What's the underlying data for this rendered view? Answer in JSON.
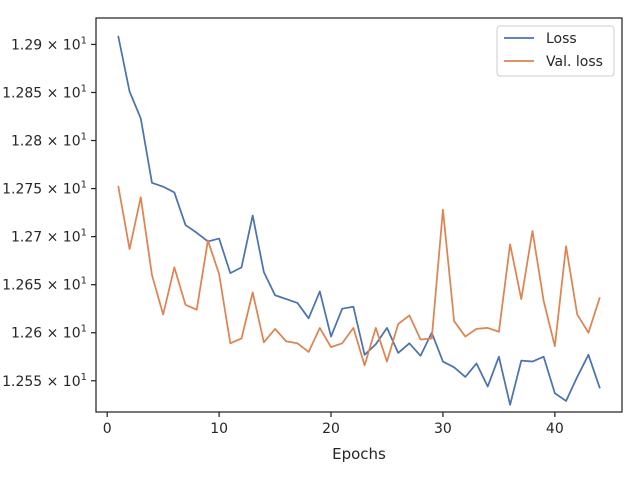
{
  "chart_data": {
    "type": "line",
    "title": "",
    "xlabel": "Epochs",
    "ylabel": "",
    "xlim": [
      -1,
      46
    ],
    "ylim": [
      12.5175,
      12.9275
    ],
    "x_ticks": [
      0,
      10,
      20,
      30,
      40
    ],
    "y_ticks": [
      {
        "value": 12.55,
        "mantissa": "1.255"
      },
      {
        "value": 12.6,
        "mantissa": "1.26"
      },
      {
        "value": 12.65,
        "mantissa": "1.265"
      },
      {
        "value": 12.7,
        "mantissa": "1.27"
      },
      {
        "value": 12.75,
        "mantissa": "1.275"
      },
      {
        "value": 12.8,
        "mantissa": "1.28"
      },
      {
        "value": 12.85,
        "mantissa": "1.285"
      },
      {
        "value": 12.9,
        "mantissa": "1.29"
      }
    ],
    "y_tick_times": "× 10",
    "y_tick_exponent": "1",
    "grid": false,
    "legend_position": "top-right",
    "x": [
      1,
      2,
      3,
      4,
      5,
      6,
      7,
      8,
      9,
      10,
      11,
      12,
      13,
      14,
      15,
      16,
      17,
      18,
      19,
      20,
      21,
      22,
      23,
      24,
      25,
      26,
      27,
      28,
      29,
      30,
      31,
      32,
      33,
      34,
      35,
      36,
      37,
      38,
      39,
      40,
      41,
      42,
      43,
      44
    ],
    "series": [
      {
        "name": "Loss",
        "color": "#4c72b0",
        "values": [
          12.908,
          12.851,
          12.823,
          12.756,
          12.752,
          12.746,
          12.712,
          12.704,
          12.695,
          12.698,
          12.662,
          12.668,
          12.722,
          12.663,
          12.639,
          12.635,
          12.631,
          12.615,
          12.643,
          12.596,
          12.625,
          12.627,
          12.577,
          12.588,
          12.605,
          12.579,
          12.589,
          12.576,
          12.6,
          12.57,
          12.564,
          12.554,
          12.568,
          12.544,
          12.575,
          12.525,
          12.571,
          12.57,
          12.575,
          12.537,
          12.529,
          12.554,
          12.577,
          12.543
        ]
      },
      {
        "name": "Val. loss",
        "color": "#dd8452",
        "values": [
          12.752,
          12.687,
          12.741,
          12.66,
          12.619,
          12.668,
          12.629,
          12.624,
          12.696,
          12.661,
          12.589,
          12.594,
          12.642,
          12.59,
          12.604,
          12.591,
          12.589,
          12.58,
          12.605,
          12.585,
          12.589,
          12.605,
          12.566,
          12.605,
          12.57,
          12.609,
          12.618,
          12.593,
          12.594,
          12.728,
          12.612,
          12.596,
          12.604,
          12.605,
          12.601,
          12.692,
          12.635,
          12.706,
          12.633,
          12.586,
          12.69,
          12.619,
          12.6,
          12.636
        ]
      }
    ]
  }
}
